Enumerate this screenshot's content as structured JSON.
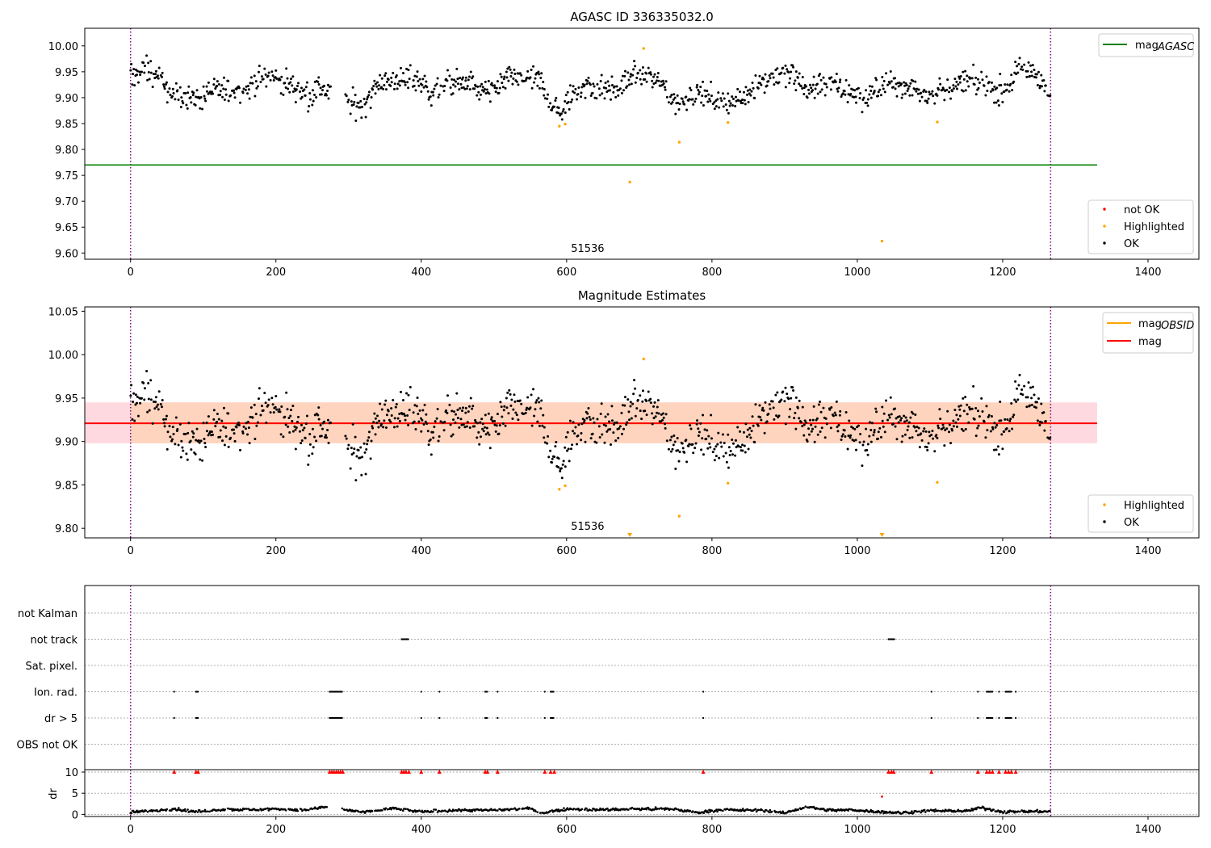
{
  "chart_data": [
    {
      "type": "scatter",
      "title": "AGASC ID 336335032.0",
      "xlim": [
        -63,
        1470
      ],
      "ylim": [
        9.588,
        10.034
      ],
      "xticks": [
        0,
        200,
        400,
        600,
        800,
        1000,
        1200,
        1400
      ],
      "yticks": [
        9.6,
        9.65,
        9.7,
        9.75,
        9.8,
        9.85,
        9.9,
        9.95,
        10.0
      ],
      "vlines": [
        0,
        1266
      ],
      "obsid_label": "51536",
      "obsid_label_at": [
        606,
        9.61
      ],
      "hlines": [
        {
          "name": "mag_AGASC",
          "label_main": "mag",
          "label_sub": "AGASC",
          "y": 9.77,
          "xmin": -63,
          "xmax": 1330,
          "color": "#008000"
        }
      ],
      "series": [
        {
          "name": "not OK",
          "color": "#ff0000",
          "points": []
        },
        {
          "name": "Highlighted",
          "color": "#ffa500",
          "points": [
            [
              590,
              9.845
            ],
            [
              598,
              9.849
            ],
            [
              687,
              9.737
            ],
            [
              706,
              9.995
            ],
            [
              755,
              9.814
            ],
            [
              822,
              9.852
            ],
            [
              1034,
              9.623
            ],
            [
              1110,
              9.853
            ]
          ]
        },
        {
          "name": "OK",
          "color": "#000000"
        }
      ],
      "ok_profile": [
        [
          0,
          9.94
        ],
        [
          20,
          9.955
        ],
        [
          40,
          9.94
        ],
        [
          55,
          9.905
        ],
        [
          80,
          9.9
        ],
        [
          110,
          9.905
        ],
        [
          130,
          9.915
        ],
        [
          160,
          9.915
        ],
        [
          175,
          9.94
        ],
        [
          200,
          9.94
        ],
        [
          215,
          9.93
        ],
        [
          240,
          9.905
        ],
        [
          260,
          9.92
        ],
        [
          275,
          9.905
        ],
        [
          288,
          null
        ],
        [
          295,
          9.89
        ],
        [
          320,
          9.885
        ],
        [
          340,
          9.93
        ],
        [
          370,
          9.935
        ],
        [
          390,
          9.935
        ],
        [
          415,
          9.91
        ],
        [
          440,
          9.93
        ],
        [
          470,
          9.925
        ],
        [
          495,
          9.905
        ],
        [
          520,
          9.935
        ],
        [
          550,
          9.935
        ],
        [
          565,
          9.93
        ],
        [
          580,
          9.885
        ],
        [
          595,
          9.87
        ],
        [
          610,
          9.915
        ],
        [
          640,
          9.92
        ],
        [
          670,
          9.91
        ],
        [
          690,
          9.945
        ],
        [
          710,
          9.945
        ],
        [
          730,
          9.93
        ],
        [
          750,
          9.89
        ],
        [
          780,
          9.91
        ],
        [
          810,
          9.895
        ],
        [
          840,
          9.895
        ],
        [
          855,
          9.92
        ],
        [
          880,
          9.94
        ],
        [
          910,
          9.945
        ],
        [
          930,
          9.915
        ],
        [
          960,
          9.93
        ],
        [
          990,
          9.91
        ],
        [
          1010,
          9.9
        ],
        [
          1030,
          9.92
        ],
        [
          1060,
          9.925
        ],
        [
          1090,
          9.91
        ],
        [
          1120,
          9.915
        ],
        [
          1150,
          9.93
        ],
        [
          1180,
          9.925
        ],
        [
          1200,
          9.91
        ],
        [
          1225,
          9.955
        ],
        [
          1250,
          9.945
        ],
        [
          1266,
          9.9
        ]
      ],
      "legend": [
        "not OK",
        "Highlighted",
        "OK"
      ]
    },
    {
      "type": "scatter",
      "title": "Magnitude Estimates",
      "xlim": [
        -63,
        1470
      ],
      "ylim": [
        9.789,
        10.055
      ],
      "xticks": [
        0,
        200,
        400,
        600,
        800,
        1000,
        1200,
        1400
      ],
      "yticks": [
        9.8,
        9.85,
        9.9,
        9.95,
        10.0,
        10.05
      ],
      "vlines": [
        0,
        1266
      ],
      "obsid_label": "51536",
      "obsid_label_at": [
        606,
        9.8
      ],
      "bands": [
        {
          "name": "mag_band",
          "y0": 9.898,
          "y1": 9.945,
          "xmin": -63,
          "xmax": 1330,
          "color": "#ffc0cb"
        },
        {
          "name": "mag_obsid_band",
          "y0": 9.898,
          "y1": 9.945,
          "xmin": 0,
          "xmax": 1266,
          "color": "#ffd0a8"
        }
      ],
      "hlines": [
        {
          "name": "mag_OBSID",
          "label_main": "mag",
          "label_sub": "OBSID",
          "y": 9.921,
          "xmin": 0,
          "xmax": 1266,
          "color": "#ffa500"
        },
        {
          "name": "mag",
          "label_main": "mag",
          "label_sub": "",
          "y": 9.921,
          "xmin": -63,
          "xmax": 1330,
          "color": "#ff0000"
        }
      ],
      "series": [
        {
          "name": "Highlighted",
          "color": "#ffa500",
          "points": [
            [
              590,
              9.845
            ],
            [
              598,
              9.849
            ],
            [
              706,
              9.995
            ],
            [
              755,
              9.814
            ],
            [
              822,
              9.852
            ],
            [
              1110,
              9.853
            ]
          ],
          "offscale_markers": [
            687,
            1034
          ]
        },
        {
          "name": "OK",
          "color": "#000000"
        }
      ],
      "legend": [
        "Highlighted",
        "OK"
      ]
    },
    {
      "type": "scatter",
      "title": "",
      "xlim": [
        -63,
        1470
      ],
      "xticks": [
        0,
        200,
        400,
        600,
        800,
        1000,
        1200,
        1400
      ],
      "vlines": [
        0,
        1266
      ],
      "flag_rows": [
        "not Kalman",
        "not track",
        "Sat. pixel.",
        "Ion. rad.",
        "dr > 5",
        "OBS not OK"
      ],
      "flags": {
        "not Kalman": [],
        "not track": [
          [
            373,
            383
          ],
          [
            1043,
            1052
          ]
        ],
        "Sat. pixel.": [],
        "Ion. rad.": [
          [
            60,
            60
          ],
          [
            90,
            93
          ],
          [
            274,
            292
          ],
          [
            400,
            400
          ],
          [
            425,
            425
          ],
          [
            488,
            491
          ],
          [
            505,
            505
          ],
          [
            570,
            570
          ],
          [
            578,
            583
          ],
          [
            788,
            788
          ],
          [
            1102,
            1102
          ],
          [
            1166,
            1166
          ],
          [
            1178,
            1186
          ],
          [
            1195,
            1195
          ],
          [
            1204,
            1212
          ],
          [
            1218,
            1218
          ]
        ],
        "dr > 5": [
          [
            60,
            60
          ],
          [
            90,
            93
          ],
          [
            274,
            292
          ],
          [
            400,
            400
          ],
          [
            425,
            425
          ],
          [
            488,
            491
          ],
          [
            505,
            505
          ],
          [
            570,
            570
          ],
          [
            578,
            583
          ],
          [
            788,
            788
          ],
          [
            1102,
            1102
          ],
          [
            1166,
            1166
          ],
          [
            1178,
            1186
          ],
          [
            1195,
            1195
          ],
          [
            1204,
            1212
          ],
          [
            1218,
            1218
          ]
        ],
        "OBS not OK": []
      },
      "dr": {
        "ylabel": "dr",
        "ylim": [
          -0.5,
          10
        ],
        "yticks": [
          0,
          5,
          10
        ],
        "clip_at": 10,
        "clipped_x": [
          60,
          90,
          93,
          274,
          277,
          280,
          283,
          286,
          289,
          292,
          373,
          376,
          379,
          383,
          400,
          425,
          488,
          491,
          505,
          570,
          578,
          583,
          788,
          1043,
          1047,
          1050,
          1102,
          1166,
          1178,
          1182,
          1186,
          1195,
          1204,
          1208,
          1212,
          1218
        ],
        "red_points": [
          [
            1034,
            4.2
          ]
        ],
        "profile": [
          [
            0,
            0.5
          ],
          [
            40,
            1.0
          ],
          [
            60,
            1.3
          ],
          [
            90,
            0.6
          ],
          [
            130,
            1.2
          ],
          [
            170,
            1.1
          ],
          [
            200,
            1.3
          ],
          [
            240,
            1.0
          ],
          [
            270,
            1.8
          ],
          [
            275,
            null
          ],
          [
            290,
            1.2
          ],
          [
            320,
            0.5
          ],
          [
            360,
            1.4
          ],
          [
            400,
            0.6
          ],
          [
            450,
            1.0
          ],
          [
            500,
            1.0
          ],
          [
            550,
            1.4
          ],
          [
            565,
            0.3
          ],
          [
            600,
            1.3
          ],
          [
            650,
            1.1
          ],
          [
            700,
            1.3
          ],
          [
            750,
            1.2
          ],
          [
            780,
            0.4
          ],
          [
            810,
            1.1
          ],
          [
            840,
            1.0
          ],
          [
            870,
            1.0
          ],
          [
            900,
            0.3
          ],
          [
            930,
            1.8
          ],
          [
            960,
            1.0
          ],
          [
            1000,
            1.0
          ],
          [
            1030,
            0.6
          ],
          [
            1060,
            0.4
          ],
          [
            1100,
            0.9
          ],
          [
            1150,
            0.8
          ],
          [
            1170,
            1.6
          ],
          [
            1200,
            0.6
          ],
          [
            1240,
            0.7
          ],
          [
            1266,
            0.7
          ]
        ]
      }
    }
  ]
}
